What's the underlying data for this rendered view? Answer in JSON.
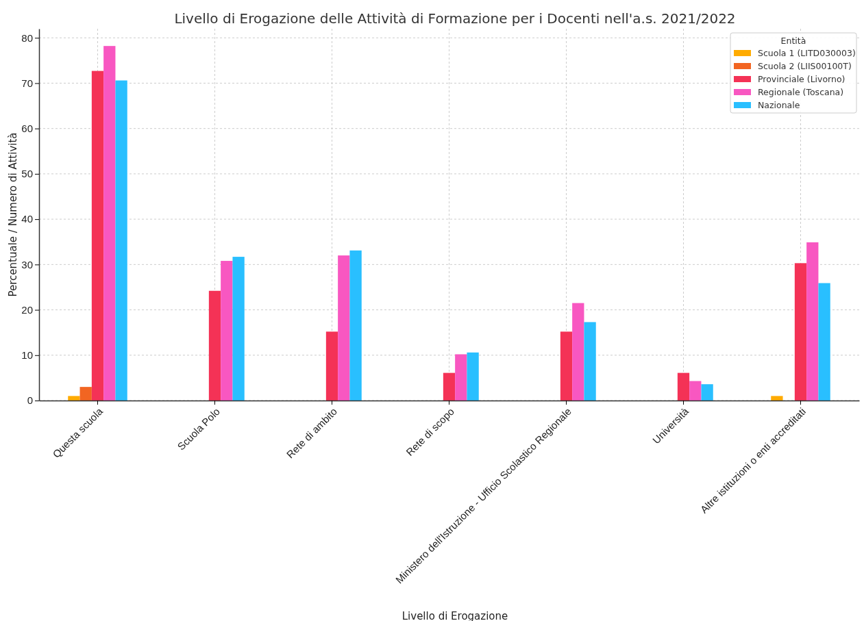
{
  "chart_data": {
    "type": "bar",
    "title": "Livello di Erogazione delle Attività di Formazione per i Docenti nell'a.s. 2021/2022",
    "xlabel": "Livello di Erogazione",
    "ylabel": "Percentuale / Numero di Attività",
    "legend_title": "Entità",
    "categories": [
      "Questa scuola",
      "Scuola Polo",
      "Rete di ambito",
      "Rete di scopo",
      "Ministero dell'Istruzione - Ufficio Scolastico Regionale",
      "Università",
      "Altre istituzioni o enti accreditati"
    ],
    "series": [
      {
        "name": "Scuola 1 (LITD030003)",
        "color": "#ffab00",
        "values": [
          1,
          0,
          0,
          0,
          0,
          0,
          1
        ]
      },
      {
        "name": "Scuola 2 (LIIS00100T)",
        "color": "#f26522",
        "values": [
          3,
          0,
          0,
          0,
          0,
          0,
          0
        ]
      },
      {
        "name": "Provinciale (Livorno)",
        "color": "#f43256",
        "values": [
          72.7,
          24.2,
          15.2,
          6.1,
          15.2,
          6.1,
          30.3
        ]
      },
      {
        "name": "Regionale (Toscana)",
        "color": "#f857c1",
        "values": [
          78.2,
          30.8,
          32,
          10.2,
          21.5,
          4.3,
          34.9
        ]
      },
      {
        "name": "Nazionale",
        "color": "#29bfff",
        "values": [
          70.6,
          31.7,
          33.1,
          10.6,
          17.3,
          3.6,
          25.9
        ]
      }
    ],
    "ylim": [
      0,
      82
    ],
    "yticks": [
      0,
      10,
      20,
      30,
      40,
      50,
      60,
      70,
      80
    ],
    "grid": true,
    "legend": "top right"
  }
}
